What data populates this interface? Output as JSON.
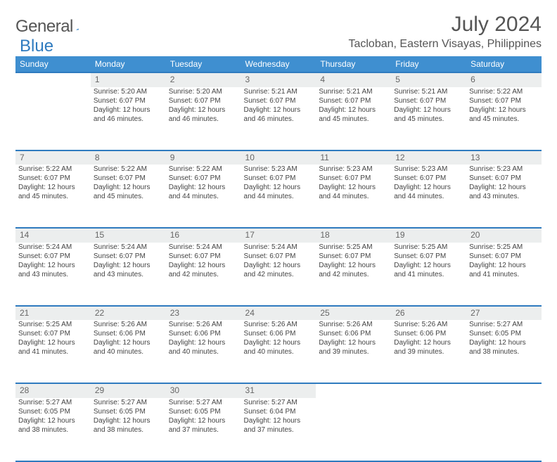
{
  "logo": {
    "part1": "General",
    "part2": "Blue"
  },
  "title": {
    "month": "July 2024",
    "location": "Tacloban, Eastern Visayas, Philippines"
  },
  "colors": {
    "header_bg": "#3f8fd0",
    "accent": "#2f7bbf",
    "daynum_bg": "#eceeee",
    "text": "#444"
  },
  "weekdays": [
    "Sunday",
    "Monday",
    "Tuesday",
    "Wednesday",
    "Thursday",
    "Friday",
    "Saturday"
  ],
  "weeks": [
    {
      "nums": [
        "",
        "1",
        "2",
        "3",
        "4",
        "5",
        "6"
      ],
      "cells": [
        null,
        {
          "sr": "5:20 AM",
          "ss": "6:07 PM",
          "dl": "12 hours and 46 minutes."
        },
        {
          "sr": "5:20 AM",
          "ss": "6:07 PM",
          "dl": "12 hours and 46 minutes."
        },
        {
          "sr": "5:21 AM",
          "ss": "6:07 PM",
          "dl": "12 hours and 46 minutes."
        },
        {
          "sr": "5:21 AM",
          "ss": "6:07 PM",
          "dl": "12 hours and 45 minutes."
        },
        {
          "sr": "5:21 AM",
          "ss": "6:07 PM",
          "dl": "12 hours and 45 minutes."
        },
        {
          "sr": "5:22 AM",
          "ss": "6:07 PM",
          "dl": "12 hours and 45 minutes."
        }
      ]
    },
    {
      "nums": [
        "7",
        "8",
        "9",
        "10",
        "11",
        "12",
        "13"
      ],
      "cells": [
        {
          "sr": "5:22 AM",
          "ss": "6:07 PM",
          "dl": "12 hours and 45 minutes."
        },
        {
          "sr": "5:22 AM",
          "ss": "6:07 PM",
          "dl": "12 hours and 45 minutes."
        },
        {
          "sr": "5:22 AM",
          "ss": "6:07 PM",
          "dl": "12 hours and 44 minutes."
        },
        {
          "sr": "5:23 AM",
          "ss": "6:07 PM",
          "dl": "12 hours and 44 minutes."
        },
        {
          "sr": "5:23 AM",
          "ss": "6:07 PM",
          "dl": "12 hours and 44 minutes."
        },
        {
          "sr": "5:23 AM",
          "ss": "6:07 PM",
          "dl": "12 hours and 44 minutes."
        },
        {
          "sr": "5:23 AM",
          "ss": "6:07 PM",
          "dl": "12 hours and 43 minutes."
        }
      ]
    },
    {
      "nums": [
        "14",
        "15",
        "16",
        "17",
        "18",
        "19",
        "20"
      ],
      "cells": [
        {
          "sr": "5:24 AM",
          "ss": "6:07 PM",
          "dl": "12 hours and 43 minutes."
        },
        {
          "sr": "5:24 AM",
          "ss": "6:07 PM",
          "dl": "12 hours and 43 minutes."
        },
        {
          "sr": "5:24 AM",
          "ss": "6:07 PM",
          "dl": "12 hours and 42 minutes."
        },
        {
          "sr": "5:24 AM",
          "ss": "6:07 PM",
          "dl": "12 hours and 42 minutes."
        },
        {
          "sr": "5:25 AM",
          "ss": "6:07 PM",
          "dl": "12 hours and 42 minutes."
        },
        {
          "sr": "5:25 AM",
          "ss": "6:07 PM",
          "dl": "12 hours and 41 minutes."
        },
        {
          "sr": "5:25 AM",
          "ss": "6:07 PM",
          "dl": "12 hours and 41 minutes."
        }
      ]
    },
    {
      "nums": [
        "21",
        "22",
        "23",
        "24",
        "25",
        "26",
        "27"
      ],
      "cells": [
        {
          "sr": "5:25 AM",
          "ss": "6:07 PM",
          "dl": "12 hours and 41 minutes."
        },
        {
          "sr": "5:26 AM",
          "ss": "6:06 PM",
          "dl": "12 hours and 40 minutes."
        },
        {
          "sr": "5:26 AM",
          "ss": "6:06 PM",
          "dl": "12 hours and 40 minutes."
        },
        {
          "sr": "5:26 AM",
          "ss": "6:06 PM",
          "dl": "12 hours and 40 minutes."
        },
        {
          "sr": "5:26 AM",
          "ss": "6:06 PM",
          "dl": "12 hours and 39 minutes."
        },
        {
          "sr": "5:26 AM",
          "ss": "6:06 PM",
          "dl": "12 hours and 39 minutes."
        },
        {
          "sr": "5:27 AM",
          "ss": "6:05 PM",
          "dl": "12 hours and 38 minutes."
        }
      ]
    },
    {
      "nums": [
        "28",
        "29",
        "30",
        "31",
        "",
        "",
        ""
      ],
      "cells": [
        {
          "sr": "5:27 AM",
          "ss": "6:05 PM",
          "dl": "12 hours and 38 minutes."
        },
        {
          "sr": "5:27 AM",
          "ss": "6:05 PM",
          "dl": "12 hours and 38 minutes."
        },
        {
          "sr": "5:27 AM",
          "ss": "6:05 PM",
          "dl": "12 hours and 37 minutes."
        },
        {
          "sr": "5:27 AM",
          "ss": "6:04 PM",
          "dl": "12 hours and 37 minutes."
        },
        null,
        null,
        null
      ]
    }
  ],
  "labels": {
    "sunrise": "Sunrise:",
    "sunset": "Sunset:",
    "daylight": "Daylight:"
  }
}
